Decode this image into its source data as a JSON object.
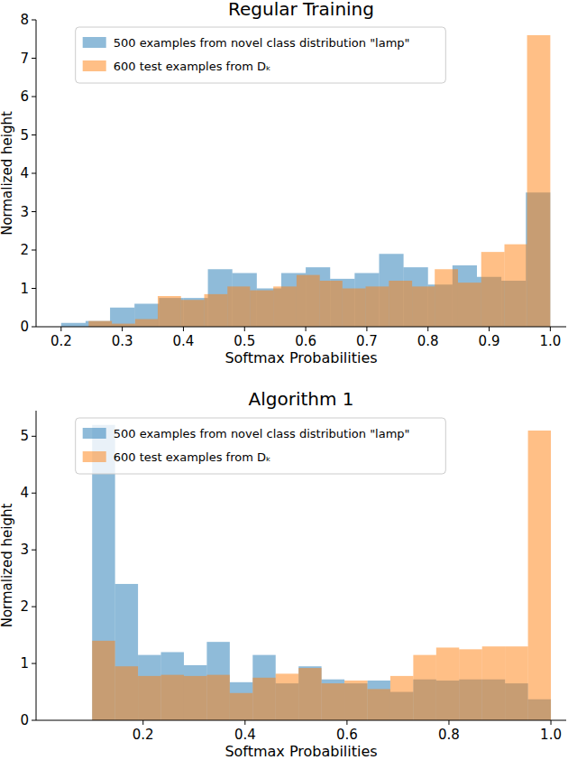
{
  "chart_data": [
    {
      "type": "histogram",
      "title": "Regular Training",
      "x_label": "Softmax Probabilities",
      "y_label": "Normalized height",
      "xlim": [
        0.159,
        1.026
      ],
      "ylim": [
        0,
        8
      ],
      "xticks": [
        0.2,
        0.3,
        0.4,
        0.5,
        0.6,
        0.7,
        0.8,
        0.9,
        {
          "value": 1,
          "label": "1.0"
        }
      ],
      "yticks": [
        0,
        1,
        2,
        3,
        4,
        5,
        6,
        7,
        8
      ],
      "legend": "upper center",
      "series": [
        {
          "name": "500 examples from novel class distribution \"lamp\"",
          "color": "#1f77b4",
          "bins": [
            0.2,
            0.24,
            0.28,
            0.32,
            0.36,
            0.4,
            0.44,
            0.48,
            0.52,
            0.56,
            0.6,
            0.64,
            0.68,
            0.72,
            0.76,
            0.8,
            0.84,
            0.88,
            0.92,
            0.96,
            1.0
          ],
          "values": [
            0.1,
            0.15,
            0.5,
            0.6,
            0.75,
            0.75,
            1.5,
            1.4,
            1.0,
            1.4,
            1.55,
            1.25,
            1.4,
            1.9,
            1.55,
            1.1,
            1.6,
            1.3,
            1.2,
            3.5
          ]
        },
        {
          "name": "600 test examples from Dₖ",
          "color": "#ff7f0e",
          "bins": [
            0.245,
            0.283,
            0.321,
            0.358,
            0.396,
            0.434,
            0.472,
            0.509,
            0.547,
            0.585,
            0.623,
            0.66,
            0.698,
            0.736,
            0.774,
            0.811,
            0.849,
            0.887,
            0.925,
            0.962,
            1.0
          ],
          "values": [
            0.15,
            0.08,
            0.2,
            0.8,
            0.7,
            0.85,
            1.05,
            0.95,
            1.05,
            1.35,
            1.2,
            1.0,
            1.05,
            1.2,
            1.05,
            1.5,
            1.15,
            1.95,
            2.15,
            7.6
          ]
        }
      ]
    },
    {
      "type": "histogram",
      "title": "Algorithm 1",
      "x_label": "Softmax Probabilities",
      "y_label": "Normalized height",
      "xlim": [
        -0.01,
        1.03
      ],
      "ylim": [
        0,
        5.45
      ],
      "xticks": [
        0.2,
        0.4,
        0.6,
        0.8,
        {
          "value": 1,
          "label": "1.0"
        }
      ],
      "yticks": [
        0,
        1,
        2,
        3,
        4,
        5
      ],
      "legend": "upper center",
      "series": [
        {
          "name": "500 examples from novel class distribution \"lamp\"",
          "color": "#1f77b4",
          "bins": [
            0.1,
            0.145,
            0.19,
            0.235,
            0.28,
            0.325,
            0.37,
            0.415,
            0.46,
            0.505,
            0.55,
            0.595,
            0.64,
            0.685,
            0.73,
            0.775,
            0.82,
            0.865,
            0.91,
            0.955,
            1.0
          ],
          "values": [
            5.2,
            2.4,
            1.15,
            1.2,
            0.97,
            1.38,
            0.67,
            1.15,
            0.65,
            0.95,
            0.72,
            0.65,
            0.7,
            0.5,
            0.72,
            0.7,
            0.72,
            0.72,
            0.65,
            0.37
          ]
        },
        {
          "name": "600 test examples from Dₖ",
          "color": "#ff7f0e",
          "bins": [
            0.1,
            0.145,
            0.19,
            0.235,
            0.28,
            0.325,
            0.37,
            0.415,
            0.46,
            0.505,
            0.55,
            0.595,
            0.64,
            0.685,
            0.73,
            0.775,
            0.82,
            0.865,
            0.91,
            0.955,
            1.0
          ],
          "values": [
            1.4,
            0.95,
            0.78,
            0.8,
            0.78,
            0.8,
            0.48,
            0.75,
            0.82,
            0.92,
            0.65,
            0.7,
            0.55,
            0.78,
            1.15,
            1.28,
            1.25,
            1.3,
            1.3,
            5.1
          ]
        }
      ]
    }
  ]
}
